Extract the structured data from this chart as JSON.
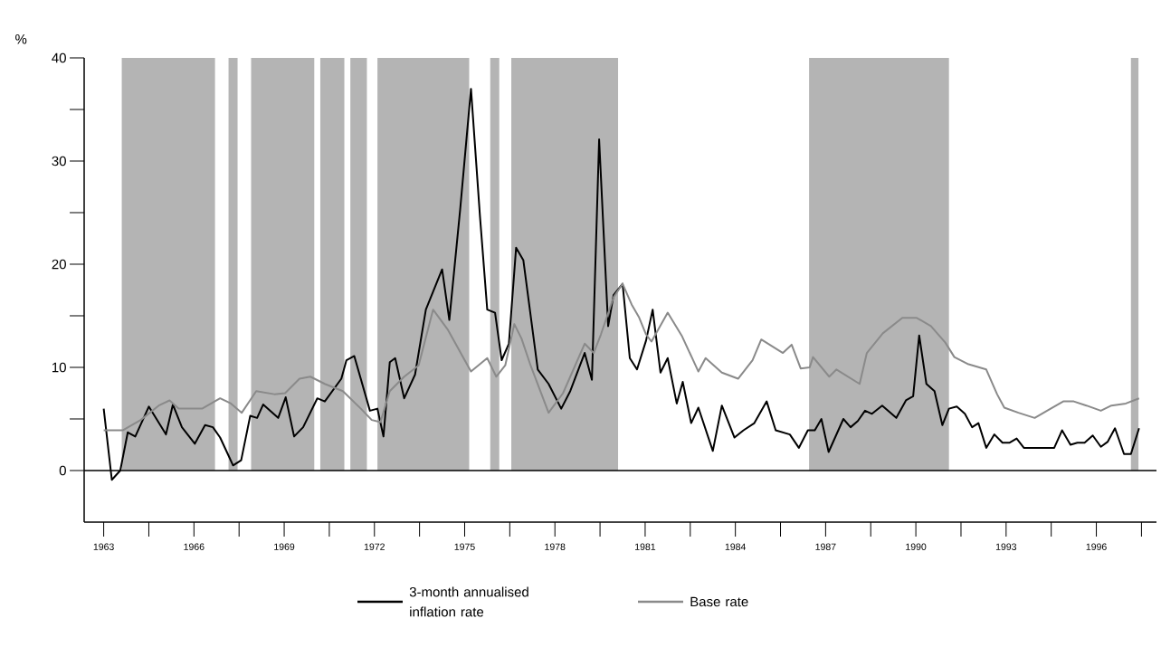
{
  "chart_data": {
    "type": "line",
    "ylabel": "%",
    "xlim": [
      1962.35,
      1998
    ],
    "ylim": [
      -5,
      40
    ],
    "xticks": [
      1963,
      {
        "value": 1964.5,
        "label": null
      },
      1966,
      {
        "value": 1967.5,
        "label": null
      },
      1969,
      {
        "value": 1970.5,
        "label": null
      },
      1972,
      {
        "value": 1973.5,
        "label": null
      },
      1975,
      {
        "value": 1976.5,
        "label": null
      },
      1978,
      {
        "value": 1979.5,
        "label": null
      },
      1981,
      {
        "value": 1982.5,
        "label": null
      },
      1984,
      {
        "value": 1985.5,
        "label": null
      },
      1987,
      {
        "value": 1988.5,
        "label": null
      },
      1990,
      {
        "value": 1991.5,
        "label": null
      },
      1993,
      {
        "value": 1994.5,
        "label": null
      },
      1996,
      {
        "value": 1997.5,
        "label": null
      }
    ],
    "yticks": [
      0,
      {
        "value": 5,
        "label": null
      },
      10,
      {
        "value": 15,
        "label": null
      },
      20,
      {
        "value": 25,
        "label": null
      },
      30,
      {
        "value": 35,
        "label": null
      },
      40
    ],
    "legend": "bottom",
    "ref_lines": [
      {
        "axis": "y",
        "value": 0,
        "color": "#000000"
      }
    ],
    "bands": [
      {
        "axis": "x",
        "from": 1963.6,
        "to": 1966.7,
        "color": "#b4b4b4"
      },
      {
        "axis": "x",
        "from": 1967.15,
        "to": 1967.45,
        "color": "#b4b4b4"
      },
      {
        "axis": "x",
        "from": 1967.9,
        "to": 1970.0,
        "color": "#b4b4b4"
      },
      {
        "axis": "x",
        "from": 1970.2,
        "to": 1971.0,
        "color": "#b4b4b4"
      },
      {
        "axis": "x",
        "from": 1971.2,
        "to": 1971.75,
        "color": "#b4b4b4"
      },
      {
        "axis": "x",
        "from": 1972.1,
        "to": 1975.15,
        "color": "#b4b4b4"
      },
      {
        "axis": "x",
        "from": 1975.85,
        "to": 1976.15,
        "color": "#b4b4b4"
      },
      {
        "axis": "x",
        "from": 1976.55,
        "to": 1980.1,
        "color": "#b4b4b4"
      },
      {
        "axis": "x",
        "from": 1986.45,
        "to": 1991.1,
        "color": "#b4b4b4"
      },
      {
        "axis": "x",
        "from": 1997.15,
        "to": 1997.4,
        "color": "#b4b4b4"
      }
    ],
    "series": [
      {
        "name": "3-month annualised inflation rate",
        "color": "#000000",
        "x": [
          1963.0,
          1963.27,
          1963.55,
          1963.8,
          1964.05,
          1964.5,
          1965.07,
          1965.3,
          1965.6,
          1966.03,
          1966.37,
          1966.63,
          1966.87,
          1967.3,
          1967.57,
          1967.87,
          1968.1,
          1968.3,
          1968.8,
          1969.05,
          1969.33,
          1969.63,
          1970.1,
          1970.35,
          1970.9,
          1971.07,
          1971.33,
          1971.85,
          1972.1,
          1972.3,
          1972.51,
          1972.69,
          1972.99,
          1973.35,
          1973.71,
          1974.25,
          1974.49,
          1974.85,
          1975.21,
          1975.51,
          1975.75,
          1976.01,
          1976.23,
          1976.47,
          1976.71,
          1976.95,
          1977.43,
          1977.79,
          1978.21,
          1978.51,
          1978.99,
          1979.23,
          1979.47,
          1979.77,
          1979.95,
          1980.25,
          1980.49,
          1980.73,
          1981.03,
          1981.25,
          1981.51,
          1981.75,
          1982.05,
          1982.25,
          1982.53,
          1982.77,
          1983.25,
          1983.55,
          1983.97,
          1984.27,
          1984.63,
          1985.04,
          1985.34,
          1985.81,
          1986.11,
          1986.41,
          1986.64,
          1986.86,
          1987.1,
          1987.59,
          1987.83,
          1988.07,
          1988.31,
          1988.54,
          1988.88,
          1989.35,
          1989.67,
          1989.91,
          1990.11,
          1990.35,
          1990.62,
          1990.88,
          1991.1,
          1991.36,
          1991.63,
          1991.87,
          1992.08,
          1992.34,
          1992.61,
          1992.88,
          1993.12,
          1993.35,
          1993.59,
          1994.6,
          1994.86,
          1995.14,
          1995.37,
          1995.61,
          1995.88,
          1996.15,
          1996.38,
          1996.62,
          1996.92,
          1997.15,
          1997.42
        ],
        "values": [
          6.0,
          -0.9,
          0,
          3.7,
          3.3,
          6.2,
          3.5,
          6.4,
          4.2,
          2.6,
          4.4,
          4.2,
          3.2,
          0.5,
          1.0,
          5.3,
          5.1,
          6.4,
          5.1,
          7.1,
          3.3,
          4.2,
          7.0,
          6.7,
          8.9,
          10.7,
          11.1,
          5.8,
          6.0,
          3.3,
          10.5,
          10.9,
          7.0,
          9.3,
          15.6,
          19.5,
          14.6,
          25.3,
          37.0,
          24.6,
          15.6,
          15.3,
          10.7,
          12.3,
          21.6,
          20.4,
          9.8,
          8.4,
          6.0,
          7.7,
          11.4,
          8.8,
          32.1,
          14.0,
          17.0,
          18.1,
          10.9,
          9.8,
          12.6,
          15.6,
          9.5,
          10.9,
          6.5,
          8.6,
          4.6,
          6.1,
          1.9,
          6.3,
          3.2,
          3.9,
          4.6,
          6.7,
          3.9,
          3.5,
          2.2,
          3.9,
          3.9,
          5.0,
          1.8,
          5.0,
          4.2,
          4.8,
          5.8,
          5.5,
          6.3,
          5.1,
          6.8,
          7.2,
          13.1,
          8.4,
          7.7,
          4.4,
          6.0,
          6.2,
          5.5,
          4.2,
          4.6,
          2.2,
          3.5,
          2.7,
          2.7,
          3.1,
          2.2,
          2.2,
          3.9,
          2.5,
          2.7,
          2.7,
          3.4,
          2.3,
          2.8,
          4.1,
          1.6,
          1.6,
          4.1
        ]
      },
      {
        "name": "Base rate",
        "color": "#8a8a8a",
        "x": [
          1963.0,
          1963.63,
          1964.23,
          1964.83,
          1965.19,
          1965.49,
          1966.27,
          1966.87,
          1967.23,
          1967.59,
          1968.07,
          1968.67,
          1969.03,
          1969.51,
          1969.87,
          1970.35,
          1970.95,
          1971.55,
          1971.91,
          1972.2,
          1972.51,
          1972.99,
          1973.47,
          1973.95,
          1974.43,
          1975.21,
          1975.75,
          1976.05,
          1976.35,
          1976.65,
          1976.89,
          1977.19,
          1977.79,
          1978.27,
          1978.99,
          1979.29,
          1979.53,
          1979.95,
          1980.25,
          1980.55,
          1980.79,
          1981.03,
          1981.21,
          1981.75,
          1982.23,
          1982.77,
          1983.01,
          1983.55,
          1984.09,
          1984.57,
          1984.86,
          1985.58,
          1985.87,
          1986.17,
          1986.47,
          1986.58,
          1987.12,
          1987.36,
          1988.13,
          1988.37,
          1988.9,
          1989.55,
          1990.03,
          1990.5,
          1990.98,
          1991.28,
          1991.75,
          1992.34,
          1992.7,
          1992.94,
          1993.41,
          1993.95,
          1994.48,
          1994.9,
          1995.25,
          1995.67,
          1996.15,
          1996.5,
          1996.98,
          1997.42
        ],
        "values": [
          3.9,
          3.9,
          4.9,
          6.3,
          6.8,
          6.0,
          6.0,
          7.0,
          6.5,
          5.6,
          7.7,
          7.4,
          7.5,
          8.9,
          9.1,
          8.4,
          7.7,
          6.0,
          4.9,
          4.7,
          7.7,
          9.1,
          10.2,
          15.6,
          13.7,
          9.6,
          10.9,
          9.1,
          10.2,
          14.2,
          12.8,
          10.2,
          5.6,
          7.5,
          12.3,
          11.4,
          13.2,
          16.8,
          18.1,
          16.1,
          14.9,
          13.2,
          12.5,
          15.3,
          13.0,
          9.6,
          10.9,
          9.5,
          8.9,
          10.7,
          12.7,
          11.4,
          12.2,
          9.9,
          10.0,
          11.0,
          9.1,
          9.8,
          8.4,
          11.4,
          13.3,
          14.8,
          14.8,
          14.0,
          12.4,
          11.0,
          10.3,
          9.8,
          7.4,
          6.1,
          5.6,
          5.1,
          6.0,
          6.7,
          6.7,
          6.3,
          5.8,
          6.3,
          6.5,
          7.0
        ]
      }
    ]
  }
}
